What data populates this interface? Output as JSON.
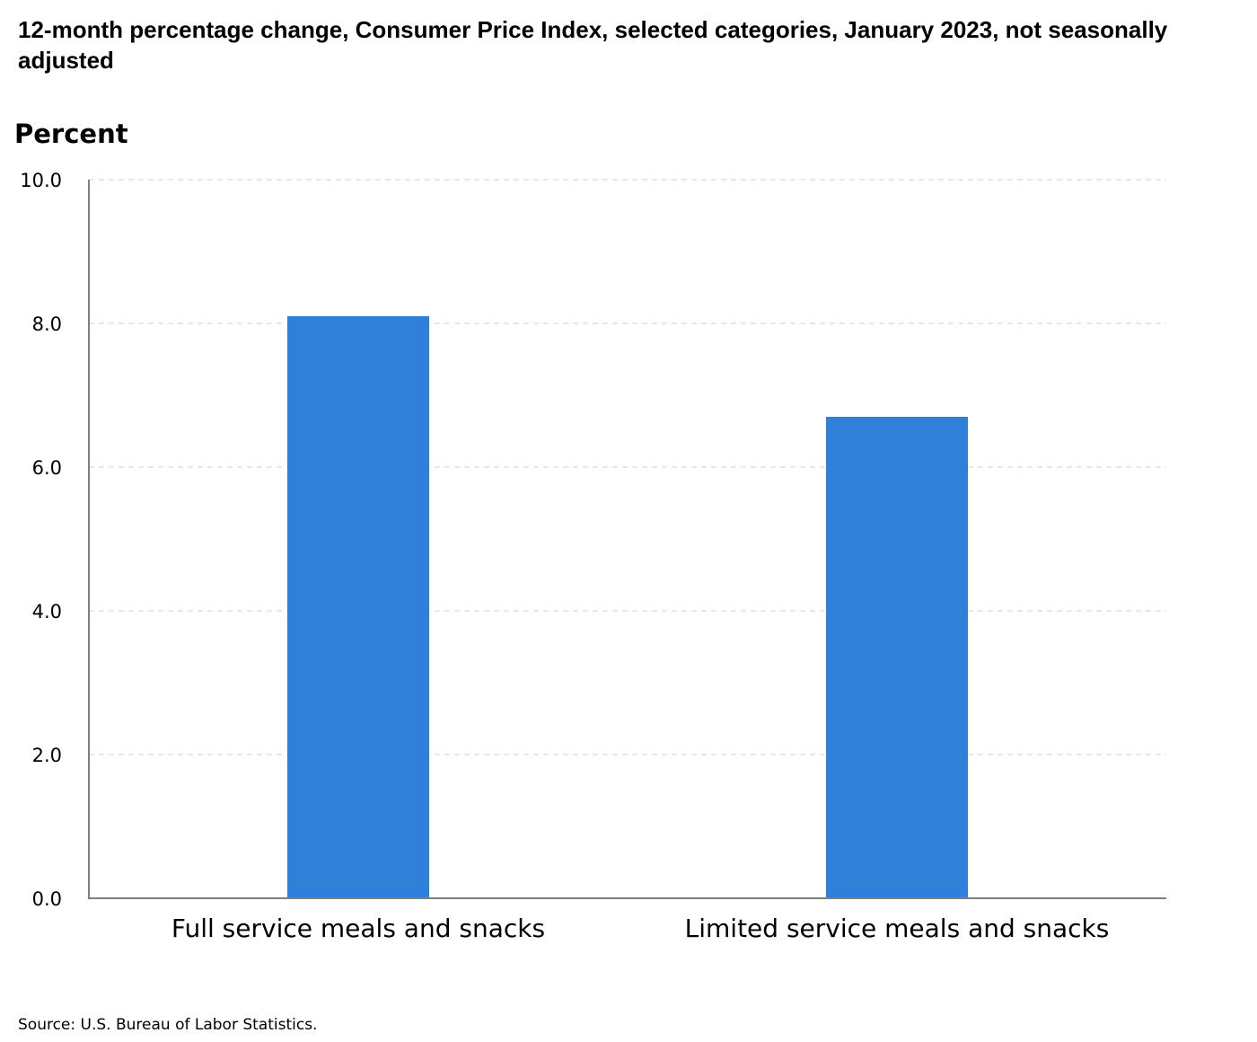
{
  "chart_data": {
    "type": "bar",
    "title": "12-month percentage change, Consumer Price Index, selected categories, January 2023, not seasonally adjusted",
    "ylabel": "Percent",
    "xlabel": "",
    "categories": [
      "Full service meals and snacks",
      "Limited service meals and snacks"
    ],
    "values": [
      8.1,
      6.7
    ],
    "ylim": [
      0,
      10
    ],
    "yticks": [
      "0.0",
      "2.0",
      "4.0",
      "6.0",
      "8.0",
      "10.0"
    ],
    "grid": true,
    "bar_color": "#2f80d9",
    "source": "Source: U.S. Bureau of Labor Statistics."
  }
}
